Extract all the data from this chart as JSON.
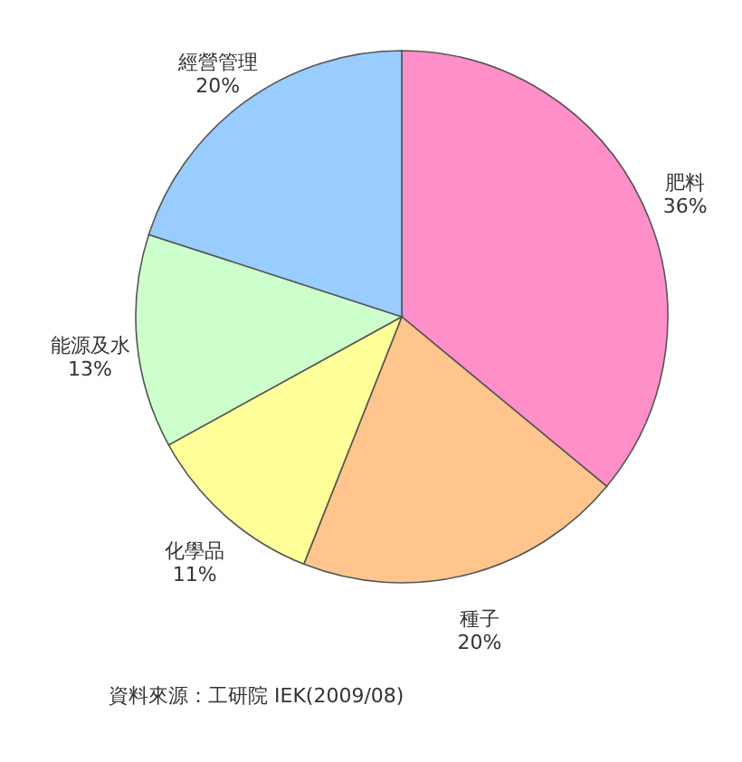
{
  "chart_data": {
    "type": "pie",
    "categories": [
      "肥料",
      "種子",
      "化學品",
      "能源及水",
      "經營管理"
    ],
    "values": [
      36,
      20,
      11,
      13,
      20
    ],
    "value_labels": [
      "36%",
      "20%",
      "11%",
      "13%",
      "20%"
    ],
    "colors": [
      "#ff8fc8",
      "#ffc58c",
      "#ffff99",
      "#ccffcc",
      "#99ccff"
    ],
    "annotations": [
      "資料來源：工研院 IEK(2009/08)"
    ]
  }
}
